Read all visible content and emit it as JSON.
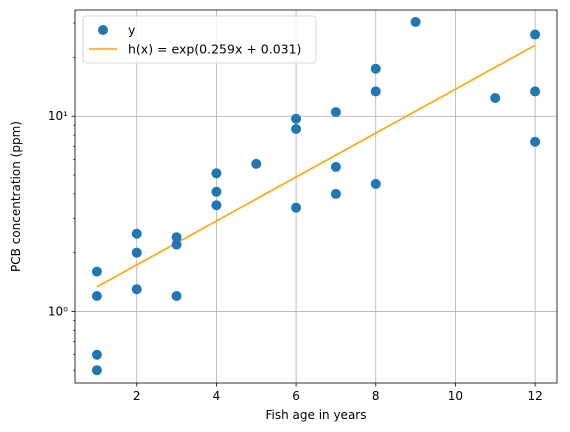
{
  "chart_data": {
    "type": "scatter",
    "xlabel": "Fish age in years",
    "ylabel": "PCB concentration (ppm)",
    "xlim": [
      0.45,
      12.55
    ],
    "ylim": [
      0.43,
      35
    ],
    "yscale": "log",
    "grid": true,
    "legend_position": "top-left",
    "x_ticks": [
      2,
      4,
      6,
      8,
      10,
      12
    ],
    "x_tick_labels": [
      "2",
      "4",
      "6",
      "8",
      "10",
      "12"
    ],
    "y_ticks": [
      1,
      10
    ],
    "y_tick_labels": [
      "10⁰",
      "10¹"
    ],
    "series": [
      {
        "name": "y",
        "kind": "scatter",
        "color": "#1f77b4",
        "x": [
          1,
          1,
          1,
          1,
          2,
          2,
          2,
          3,
          3,
          3,
          4,
          4,
          4,
          5,
          6,
          6,
          6,
          7,
          7,
          7,
          8,
          8,
          8,
          9,
          11,
          12,
          12,
          12
        ],
        "y": [
          0.6,
          1.6,
          0.5,
          1.2,
          2.0,
          1.3,
          2.5,
          1.2,
          2.2,
          2.4,
          3.5,
          4.1,
          5.1,
          5.7,
          3.4,
          9.7,
          8.6,
          4.0,
          5.5,
          10.5,
          17.5,
          13.4,
          4.5,
          30.4,
          12.4,
          13.4,
          26.2,
          7.4
        ]
      },
      {
        "name": "h(x) = exp(0.259x + 0.031)",
        "kind": "line",
        "color": "#ffa500",
        "coef_a": 0.259,
        "coef_b": 0.031,
        "x_range": [
          1,
          12
        ]
      }
    ]
  }
}
